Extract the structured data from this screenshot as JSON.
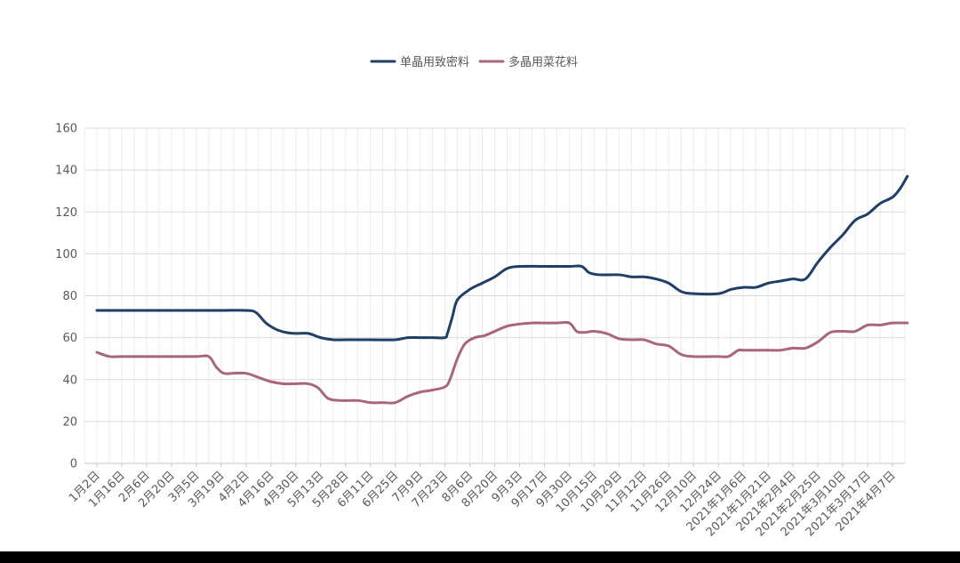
{
  "chart_data": {
    "type": "line",
    "title": "",
    "xlabel": "",
    "ylabel": "",
    "ylim": [
      0,
      160
    ],
    "yticks": [
      0,
      20,
      40,
      60,
      80,
      100,
      120,
      140,
      160
    ],
    "grid": true,
    "legend_position": "top-center",
    "x_tick_labels": [
      "1月2日",
      "1月16日",
      "2月6日",
      "2月20日",
      "3月5日",
      "3月19日",
      "4月2日",
      "4月16日",
      "4月30日",
      "5月13日",
      "5月28日",
      "6月11日",
      "6月25日",
      "7月9日",
      "7月23日",
      "8月6日",
      "8月20日",
      "9月3日",
      "9月17日",
      "9月30日",
      "10月15日",
      "10月29日",
      "11月12日",
      "11月26日",
      "12月10日",
      "12月24日",
      "2021年1月6日",
      "2021年1月21日",
      "2021年2月4日",
      "2021年2月25日",
      "2021年3月10日",
      "2021年3月17日",
      "2021年4月7日"
    ],
    "series": [
      {
        "name": "单晶用致密料",
        "color": "#1f3f66",
        "points": [
          [
            0,
            73
          ],
          [
            1,
            73
          ],
          [
            2,
            73
          ],
          [
            3,
            73
          ],
          [
            4,
            73
          ],
          [
            5,
            73
          ],
          [
            6,
            73
          ],
          [
            6.4,
            72
          ],
          [
            6.8,
            67
          ],
          [
            7.2,
            64
          ],
          [
            7.6,
            62.5
          ],
          [
            8,
            62
          ],
          [
            8.5,
            62
          ],
          [
            9,
            60
          ],
          [
            9.5,
            59
          ],
          [
            10,
            59
          ],
          [
            11,
            59
          ],
          [
            12,
            59
          ],
          [
            12.5,
            60
          ],
          [
            13,
            60
          ],
          [
            13.5,
            60
          ],
          [
            14,
            60
          ],
          [
            14.1,
            62
          ],
          [
            14.3,
            70
          ],
          [
            14.5,
            78
          ],
          [
            15,
            83
          ],
          [
            15.5,
            86
          ],
          [
            16,
            89
          ],
          [
            16.5,
            93
          ],
          [
            17,
            94
          ],
          [
            18,
            94
          ],
          [
            19,
            94
          ],
          [
            19.5,
            94
          ],
          [
            19.8,
            91
          ],
          [
            20.2,
            90
          ],
          [
            21,
            90
          ],
          [
            21.5,
            89
          ],
          [
            22,
            89
          ],
          [
            22.5,
            88
          ],
          [
            23,
            86
          ],
          [
            23.5,
            82
          ],
          [
            24,
            81
          ],
          [
            25,
            81
          ],
          [
            25.5,
            83
          ],
          [
            26,
            84
          ],
          [
            26.5,
            84
          ],
          [
            27,
            86
          ],
          [
            27.5,
            87
          ],
          [
            28,
            88
          ],
          [
            28.5,
            88
          ],
          [
            29,
            96
          ],
          [
            29.5,
            103
          ],
          [
            30,
            109
          ],
          [
            30.5,
            116
          ],
          [
            31,
            119
          ],
          [
            31.5,
            124
          ],
          [
            32,
            127
          ],
          [
            32.3,
            131
          ],
          [
            32.6,
            137
          ]
        ]
      },
      {
        "name": "多晶用菜花料",
        "color": "#a8657c",
        "points": [
          [
            0,
            53
          ],
          [
            0.5,
            51
          ],
          [
            1,
            51
          ],
          [
            2,
            51
          ],
          [
            3,
            51
          ],
          [
            4,
            51
          ],
          [
            4.5,
            51
          ],
          [
            4.8,
            46
          ],
          [
            5.1,
            43
          ],
          [
            5.5,
            43
          ],
          [
            6,
            43
          ],
          [
            6.5,
            41
          ],
          [
            7,
            39
          ],
          [
            7.5,
            38
          ],
          [
            8,
            38
          ],
          [
            8.5,
            38
          ],
          [
            8.9,
            36
          ],
          [
            9.3,
            31
          ],
          [
            9.8,
            30
          ],
          [
            10.5,
            30
          ],
          [
            11,
            29
          ],
          [
            11.5,
            29
          ],
          [
            12,
            29
          ],
          [
            12.5,
            32
          ],
          [
            13,
            34
          ],
          [
            13.5,
            35
          ],
          [
            14,
            36.5
          ],
          [
            14.2,
            40
          ],
          [
            14.5,
            50
          ],
          [
            14.8,
            57
          ],
          [
            15.2,
            60
          ],
          [
            15.6,
            61
          ],
          [
            16,
            63
          ],
          [
            16.5,
            65.5
          ],
          [
            17,
            66.5
          ],
          [
            17.5,
            67
          ],
          [
            18,
            67
          ],
          [
            18.5,
            67
          ],
          [
            19,
            67
          ],
          [
            19.3,
            63
          ],
          [
            19.6,
            62.5
          ],
          [
            20,
            63
          ],
          [
            20.5,
            62
          ],
          [
            21,
            59.5
          ],
          [
            21.5,
            59
          ],
          [
            22,
            59
          ],
          [
            22.5,
            57
          ],
          [
            23,
            56
          ],
          [
            23.5,
            52
          ],
          [
            24,
            51
          ],
          [
            25,
            51
          ],
          [
            25.4,
            51
          ],
          [
            25.8,
            54
          ],
          [
            26,
            54
          ],
          [
            27,
            54
          ],
          [
            27.5,
            54
          ],
          [
            28,
            55
          ],
          [
            28.5,
            55
          ],
          [
            29,
            58
          ],
          [
            29.5,
            62.5
          ],
          [
            30,
            63
          ],
          [
            30.5,
            63
          ],
          [
            31,
            66
          ],
          [
            31.5,
            66
          ],
          [
            32,
            67
          ],
          [
            32.6,
            67
          ]
        ]
      }
    ]
  }
}
